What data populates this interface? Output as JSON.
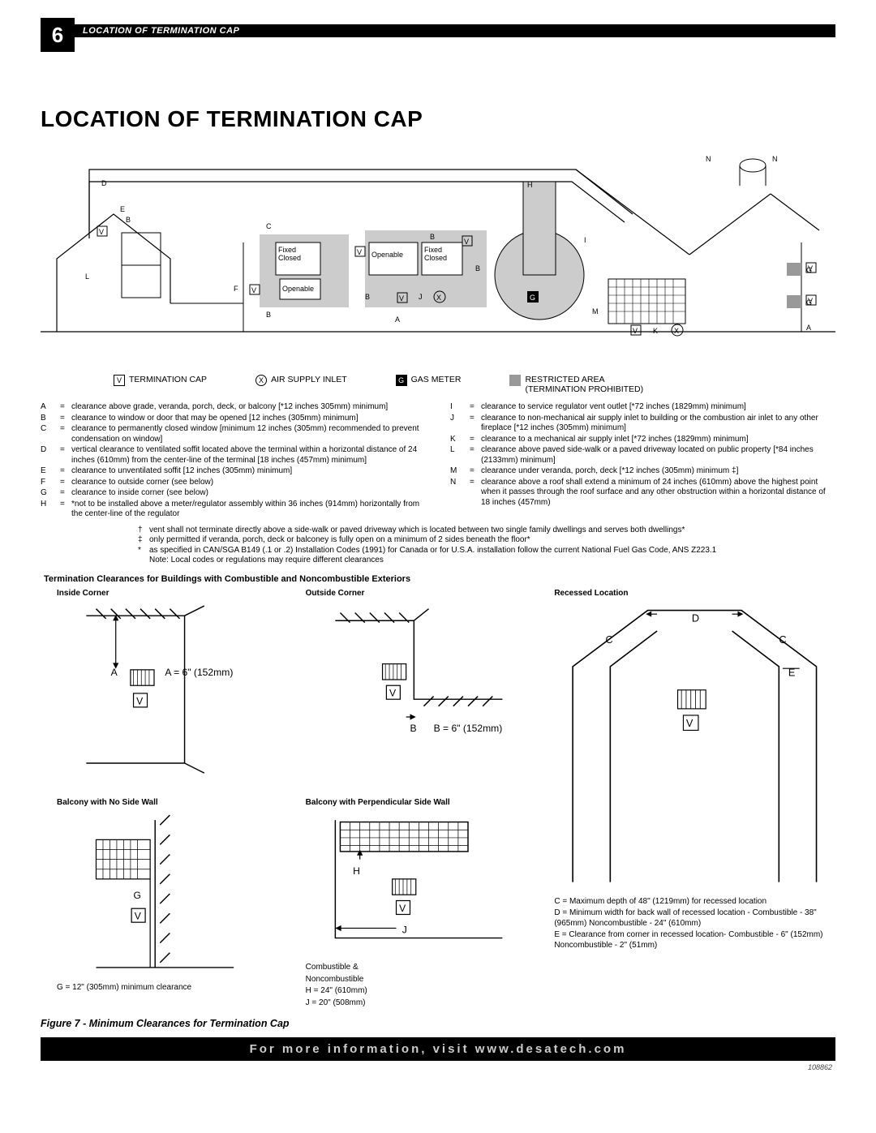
{
  "page_number": "6",
  "header_title": "LOCATION OF TERMINATION CAP",
  "main_title": "LOCATION OF TERMINATION CAP",
  "legend": {
    "v": "TERMINATION CAP",
    "x": "AIR SUPPLY INLET",
    "g": "GAS METER",
    "r1": "RESTRICTED AREA",
    "r2": "(TERMINATION PROHIBITED)"
  },
  "defs_left": [
    {
      "k": "A",
      "t": "clearance above grade, veranda, porch, deck, or balcony [*12 inches 305mm) minimum]"
    },
    {
      "k": "B",
      "t": "clearance to window or door that may be opened [12 inches (305mm) minimum]"
    },
    {
      "k": "C",
      "t": "clearance to permanently closed window [minimum 12 inches (305mm) recommended to prevent condensation on window]"
    },
    {
      "k": "D",
      "t": "vertical clearance to ventilated soffit located above the terminal within a horizontal distance of 24 inches (610mm) from the center-line of the terminal [18 inches (457mm) minimum]"
    },
    {
      "k": "E",
      "t": "clearance to unventilated soffit [12 inches (305mm) minimum]"
    },
    {
      "k": "F",
      "t": "clearance to outside corner (see below)"
    },
    {
      "k": "G",
      "t": "clearance to inside corner (see below)"
    },
    {
      "k": "H",
      "t": "*not to be installed above a meter/regulator assembly within 36 inches (914mm) horizontally from the center-line of the regulator"
    }
  ],
  "defs_right": [
    {
      "k": "I",
      "t": "clearance to service regulator vent outlet [*72 inches (1829mm) minimum]"
    },
    {
      "k": "J",
      "t": "clearance to non-mechanical air supply inlet to building or the combustion air inlet to any other fireplace [*12 inches (305mm) minimum]"
    },
    {
      "k": "K",
      "t": "clearance to a mechanical air supply inlet [*72 inches (1829mm) minimum]"
    },
    {
      "k": "L",
      "t": "clearance above paved side-walk or a paved driveway located on public property [*84 inches (2133mm) minimum]"
    },
    {
      "k": "M",
      "t": "clearance under veranda, porch, deck [*12 inches (305mm) minimum ‡]"
    },
    {
      "k": "N",
      "t": "clearance above a roof shall extend a minimum of 24 inches (610mm) above the highest point when it passes through the roof surface and any other obstruction within a horizontal distance of 18 inches (457mm)"
    }
  ],
  "center_notes": [
    {
      "m": "†",
      "t": "vent shall not terminate directly above a side-walk or paved driveway which is located between two single family dwellings and serves both dwellings*"
    },
    {
      "m": "‡",
      "t": "only permitted if veranda, porch, deck or balconey is fully open on a minimum of 2 sides beneath the floor*"
    },
    {
      "m": "*",
      "t": "as specified in CAN/SGA B149 (.1 or .2) Installation Codes (1991) for Canada or for U.S.A. installation follow the current National Fuel Gas Code, ANS Z223.1"
    },
    {
      "m": "",
      "t": "Note: Local codes or regulations may require different clearances"
    }
  ],
  "section_title": "Termination Clearances for Buildings with Combustible and Noncombustible Exteriors",
  "thumbs": {
    "inside": {
      "title": "Inside Corner",
      "a_label": "A = 6\" (152mm)"
    },
    "outside": {
      "title": "Outside Corner",
      "b_label": "B = 6\" (152mm)"
    },
    "recessed": {
      "title": "Recessed Location",
      "c_text": "C = Maximum depth of 48\" (1219mm) for recessed location",
      "d_text": "D = Minimum width for back wall of recessed location - Combustible - 38\" (965mm) Noncombustible - 24\" (610mm)",
      "e_text": "E = Clearance from corner in recessed location- Combustible - 6\" (152mm) Noncombustible - 2\" (51mm)"
    },
    "balcony_no_wall": {
      "title": "Balcony with No Side Wall",
      "g_text": "G = 12\" (305mm) minimum clearance"
    },
    "balcony_perp": {
      "title": "Balcony with Perpendicular Side Wall",
      "line1": "Combustible &",
      "line2": "Noncombustible",
      "h_text": "H = 24\" (610mm)",
      "j_text": "J = 20\" (508mm)"
    }
  },
  "figure_caption": "Figure 7 - Minimum Clearances for Termination Cap",
  "footer": "For more information, visit www.desatech.com",
  "doc_id": "108862",
  "diagram": {
    "labels": {
      "fixed_closed": "Fixed\nClosed",
      "openable": "Openable",
      "fixed_closed2": "Fixed\nClosed"
    }
  },
  "colors": {
    "black": "#000000",
    "grey_fill": "#cccccc",
    "grey_restricted": "#999999"
  }
}
